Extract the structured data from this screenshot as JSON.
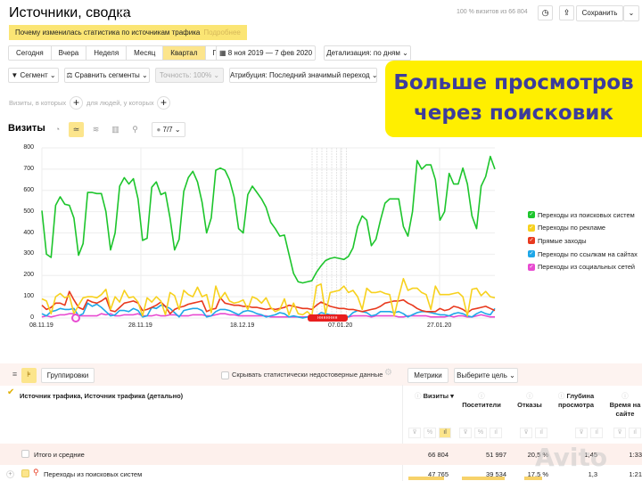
{
  "header": {
    "title": "Источники, сводка",
    "banner_text": "Почему изменилась статистика по источникам трафика",
    "banner_link": "Подробнее",
    "stats": "100 % визитов из 66 804",
    "save_label": "Сохранить"
  },
  "periods": [
    {
      "label": "Сегодня",
      "active": false
    },
    {
      "label": "Вчера",
      "active": false
    },
    {
      "label": "Неделя",
      "active": false
    },
    {
      "label": "Месяц",
      "active": false
    },
    {
      "label": "Квартал",
      "active": true
    },
    {
      "label": "Год",
      "active": false
    }
  ],
  "date_range": "8 ноя 2019 — 7 фев 2020",
  "detail": "Детализация: по дням",
  "filters": {
    "segment": "Сегмент",
    "compare": "Сравнить сегменты",
    "accuracy": "Точность: 100%",
    "attribution": "Атрибуция: Последний значимый переход",
    "visits_where": "Визиты, в которых",
    "people_where": "для людей, у которых"
  },
  "chart_header": {
    "title": "Визиты",
    "series_count": "7/7"
  },
  "promo": {
    "line1": "Больше просмотров",
    "line2": "через поисковик",
    "bg": "#ffef00",
    "color": "#3c3c9c"
  },
  "chart_data": {
    "type": "line",
    "title": "Визиты",
    "xlabel": "",
    "ylabel": "",
    "ylim": [
      0,
      800
    ],
    "yticks": [
      0,
      100,
      200,
      300,
      400,
      500,
      600,
      700,
      800
    ],
    "xticks": [
      "08.11.19",
      "28.11.19",
      "18.12.19",
      "07.01.20",
      "27.01.20"
    ],
    "grid": true,
    "legend_position": "right",
    "x_start": "08.11.19",
    "x_step": "1 day",
    "series": [
      {
        "name": "Переходы из поисковых систем",
        "color": "#1dc52c",
        "values": [
          505,
          300,
          285,
          530,
          570,
          535,
          530,
          470,
          295,
          350,
          590,
          590,
          585,
          585,
          500,
          320,
          400,
          620,
          660,
          630,
          655,
          560,
          365,
          375,
          615,
          640,
          580,
          590,
          470,
          320,
          370,
          595,
          660,
          690,
          640,
          545,
          400,
          470,
          695,
          705,
          695,
          650,
          570,
          420,
          400,
          580,
          620,
          590,
          560,
          520,
          450,
          420,
          385,
          390,
          300,
          210,
          170,
          165,
          170,
          175,
          215,
          245,
          270,
          280,
          285,
          280,
          275,
          290,
          330,
          430,
          480,
          460,
          340,
          370,
          460,
          540,
          560,
          560,
          560,
          430,
          385,
          500,
          740,
          700,
          720,
          720,
          650,
          460,
          500,
          680,
          630,
          630,
          705,
          630,
          480,
          420,
          620,
          665,
          760,
          700
        ]
      },
      {
        "name": "Переходы по рекламе",
        "color": "#f7d11e",
        "values": [
          90,
          80,
          20,
          100,
          115,
          95,
          105,
          20,
          60,
          95,
          100,
          100,
          95,
          110,
          135,
          40,
          100,
          75,
          130,
          95,
          100,
          75,
          10,
          95,
          75,
          100,
          80,
          15,
          120,
          105,
          40,
          130,
          110,
          100,
          145,
          100,
          110,
          25,
          150,
          90,
          120,
          80,
          70,
          75,
          85,
          40,
          100,
          90,
          70,
          95,
          50,
          30,
          40,
          90,
          15,
          70,
          20,
          15,
          30,
          10,
          150,
          160,
          20,
          120,
          125,
          130,
          150,
          120,
          130,
          100,
          40,
          140,
          120,
          120,
          125,
          115,
          110,
          10,
          100,
          185,
          130,
          140,
          140,
          120,
          110,
          40,
          150,
          110,
          110,
          110,
          115,
          120,
          100,
          10,
          135,
          140,
          105,
          125,
          100,
          95
        ]
      },
      {
        "name": "Прямые заходы",
        "color": "#e8391e",
        "values": [
          60,
          40,
          50,
          70,
          70,
          60,
          125,
          85,
          50,
          40,
          85,
          75,
          70,
          80,
          95,
          35,
          30,
          50,
          70,
          75,
          80,
          70,
          35,
          40,
          50,
          60,
          75,
          55,
          20,
          40,
          50,
          55,
          65,
          70,
          75,
          80,
          30,
          40,
          45,
          95,
          70,
          65,
          60,
          60,
          55,
          55,
          50,
          50,
          45,
          40,
          45,
          40,
          45,
          50,
          60,
          55,
          50,
          45,
          45,
          40,
          60,
          75,
          65,
          55,
          50,
          45,
          45,
          40,
          40,
          35,
          30,
          35,
          40,
          45,
          55,
          70,
          75,
          80,
          80,
          85,
          70,
          60,
          45,
          35,
          30,
          30,
          30,
          45,
          35,
          40,
          55,
          50,
          40,
          25,
          40,
          45,
          50,
          55,
          45,
          35
        ]
      },
      {
        "name": "Переходы по ссылкам на сайтах",
        "color": "#1ea7e8",
        "values": [
          20,
          10,
          30,
          35,
          45,
          40,
          40,
          45,
          10,
          20,
          70,
          55,
          65,
          50,
          30,
          10,
          15,
          35,
          35,
          30,
          45,
          35,
          5,
          10,
          50,
          45,
          60,
          55,
          45,
          25,
          5,
          35,
          40,
          45,
          45,
          35,
          5,
          10,
          30,
          40,
          40,
          35,
          25,
          15,
          30,
          35,
          30,
          20,
          15,
          5,
          10,
          15,
          25,
          20,
          5,
          10,
          5,
          0,
          5,
          5,
          10,
          25,
          20,
          15,
          15,
          10,
          10,
          5,
          25,
          35,
          30,
          25,
          10,
          15,
          30,
          30,
          30,
          25,
          30,
          20,
          5,
          15,
          25,
          30,
          30,
          25,
          20,
          15,
          15,
          10,
          20,
          25,
          20,
          10,
          5,
          20,
          30,
          20,
          15,
          45
        ]
      },
      {
        "name": "Переходы из социальных сетей",
        "color": "#e84bd1",
        "values": [
          5,
          10,
          5,
          10,
          15,
          15,
          20,
          20,
          10,
          10,
          10,
          10,
          10,
          20,
          15,
          20,
          10,
          10,
          15,
          15,
          15,
          20,
          10,
          10,
          10,
          15,
          10,
          10,
          15,
          15,
          10,
          10,
          10,
          15,
          15,
          15,
          10,
          10,
          15,
          20,
          20,
          15,
          15,
          10,
          10,
          10,
          10,
          10,
          10,
          10,
          5,
          5,
          5,
          5,
          5,
          5,
          5,
          5,
          5,
          5,
          5,
          10,
          10,
          10,
          5,
          5,
          5,
          5,
          10,
          10,
          10,
          10,
          5,
          10,
          10,
          10,
          10,
          10,
          5,
          5,
          10,
          10,
          10,
          10,
          10,
          5,
          5,
          5,
          5,
          10,
          5,
          10,
          10,
          5,
          5,
          10,
          15,
          10,
          5,
          5
        ]
      }
    ]
  },
  "table": {
    "groupings_label": "Группировки",
    "hide_unreliable": "Скрывать статистически недостоверные данные",
    "metrics_label": "Метрики",
    "goal_label": "Выберите цель",
    "dim_header": "Источник трафика, Источник трафика (детально)",
    "columns": [
      {
        "label": "Визиты ▾"
      },
      {
        "label": "Посетители"
      },
      {
        "label": "Отказы"
      },
      {
        "label": "Глубина просмотра"
      },
      {
        "label": "Время на сайте"
      }
    ],
    "rows": [
      {
        "name": "Итого и средние",
        "values": [
          "66 804",
          "51 997",
          "20,5 %",
          "1,45",
          "1:33"
        ]
      },
      {
        "name": "Переходы из поисковых систем",
        "values": [
          "47 765",
          "39 534",
          "17,5 %",
          "1,3",
          "1:21"
        ]
      }
    ]
  }
}
